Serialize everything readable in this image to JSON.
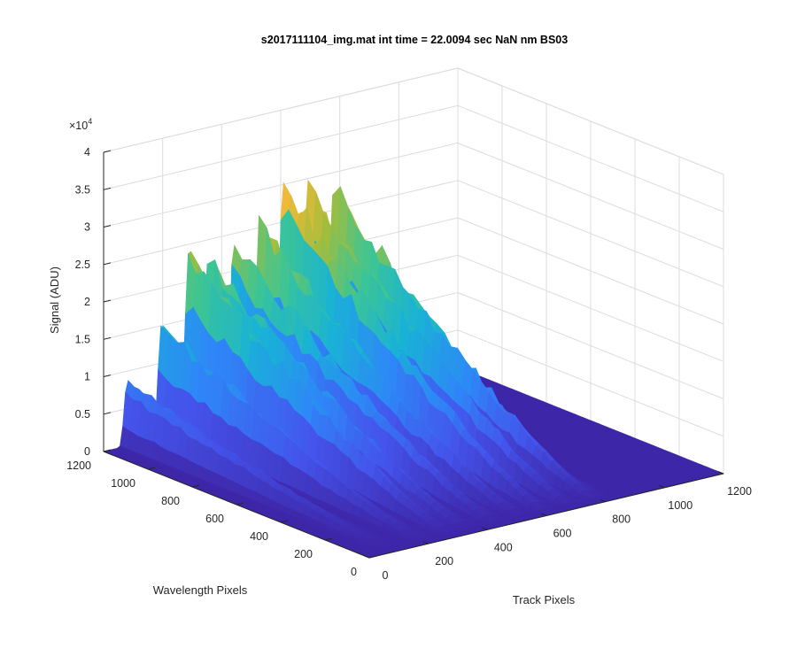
{
  "window": {
    "background": "#ffffff"
  },
  "chart_data": {
    "type": "surface",
    "title": "s2017111104_img.mat int time = 22.0094 sec  NaN nm BS03",
    "xlabel": "Track Pixels",
    "ylabel": "Wavelength Pixels",
    "zlabel": "Signal (ADU)",
    "xlim": [
      0,
      1200
    ],
    "ylim": [
      0,
      1200
    ],
    "zlim": [
      0,
      40000
    ],
    "z_exponent_label": "×10",
    "z_exponent_power": "4",
    "x_ticks": [
      "0",
      "200",
      "400",
      "600",
      "800",
      "1000",
      "1200"
    ],
    "y_ticks": [
      "0",
      "200",
      "400",
      "600",
      "800",
      "1000",
      "1200"
    ],
    "z_ticks": [
      "0",
      "0.5",
      "1",
      "1.5",
      "2",
      "2.5",
      "3",
      "3.5",
      "4"
    ],
    "grid": true,
    "colormap": [
      "#3e26a8",
      "#4454ec",
      "#2e87f7",
      "#19b2d6",
      "#3cc595",
      "#a3bd3c",
      "#f6ba39",
      "#f9fb15"
    ],
    "series": [
      {
        "x": [
          80,
          195,
          285,
          350,
          440,
          525,
          605,
          690,
          775
        ],
        "y": [
          1200,
          1200,
          1200,
          1200,
          1200,
          1200,
          1200,
          1200,
          1200
        ],
        "values": [
          9000,
          16000,
          25000,
          24000,
          25500,
          27000,
          32000,
          31000,
          30000
        ]
      }
    ]
  }
}
